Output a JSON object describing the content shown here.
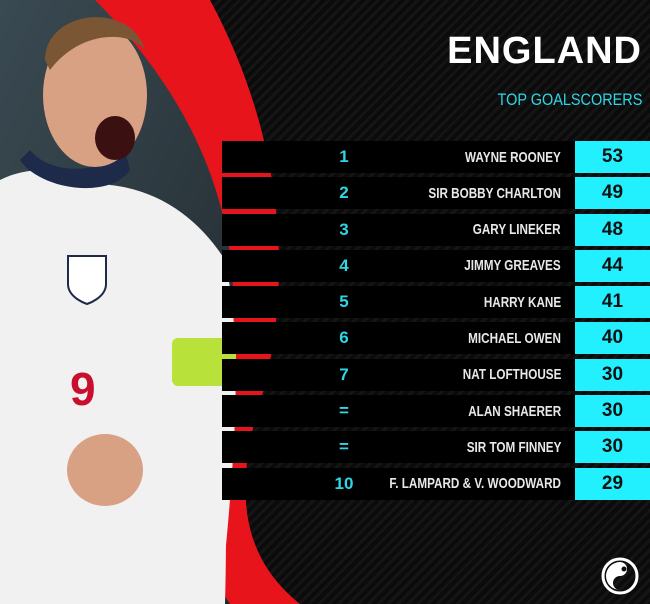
{
  "header": {
    "title": "ENGLAND",
    "subtitle": "TOP GOALSCORERS"
  },
  "colors": {
    "accent": "#22f0ff",
    "red": "#e8141c",
    "background": "#0d0d0d"
  },
  "rows": [
    {
      "rank": "1",
      "name": "WAYNE ROONEY",
      "goals": "53"
    },
    {
      "rank": "2",
      "name": "SIR BOBBY CHARLTON",
      "goals": "49"
    },
    {
      "rank": "3",
      "name": "GARY LINEKER",
      "goals": "48"
    },
    {
      "rank": "4",
      "name": "JIMMY GREAVES",
      "goals": "44"
    },
    {
      "rank": "5",
      "name": "HARRY KANE",
      "goals": "41"
    },
    {
      "rank": "6",
      "name": "MICHAEL OWEN",
      "goals": "40"
    },
    {
      "rank": "7",
      "name": "NAT LOFTHOUSE",
      "goals": "30"
    },
    {
      "rank": "=",
      "name": "ALAN SHAERER",
      "goals": "30"
    },
    {
      "rank": "=",
      "name": "SIR TOM FINNEY",
      "goals": "30"
    },
    {
      "rank": "10",
      "name": "F. LAMPARD & V. WOODWARD",
      "goals": "29"
    }
  ],
  "photo": {
    "shirt_number": "9"
  },
  "logo": {
    "icon": "brand-swirl-icon"
  }
}
